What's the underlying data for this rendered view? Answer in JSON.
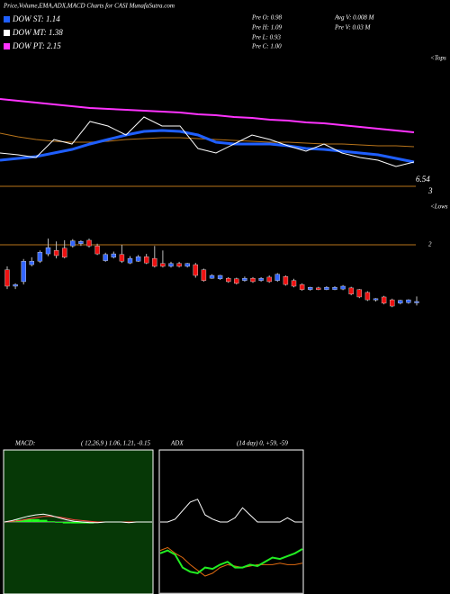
{
  "header": {
    "title": "Price,Volume,EMA,ADX,MACD Charts for CASI MunafaSutra.com",
    "legend": [
      {
        "label": "DOW ST: 1.14",
        "color": "#1f5fff"
      },
      {
        "label": "DOW MT: 1.38",
        "color": "#ffffff"
      },
      {
        "label": "DOW PT: 2.15",
        "color": "#ff33ff"
      }
    ],
    "stats": [
      "Pre  O: 0.98",
      "Pre  H: 1.09",
      "Pre  L: 0.93",
      "Pre  C: 1.00",
      "Avg V: 0.008 M",
      "Pre  V: 0.03 M"
    ]
  },
  "chart_data": [
    {
      "type": "line",
      "annotations": [
        "<Tops",
        "6.54",
        "3"
      ],
      "ylim": [
        0,
        155
      ],
      "series": [
        {
          "color": "#ff33ff",
          "width": 2,
          "values": [
            105,
            103,
            101,
            99,
            97,
            95,
            94,
            93,
            92,
            91,
            90,
            88,
            87,
            85,
            84,
            82,
            81,
            79,
            78,
            76,
            74,
            72,
            70,
            68
          ]
        },
        {
          "color": "#b8741a",
          "width": 1,
          "values": [
            67,
            63,
            60,
            58,
            57,
            57,
            58,
            60,
            61,
            62,
            62,
            61,
            60,
            59,
            58,
            57,
            57,
            56,
            55,
            55,
            54,
            53,
            53,
            52
          ]
        },
        {
          "color": "#1f5fff",
          "width": 3,
          "values": [
            37,
            39,
            41,
            45,
            49,
            55,
            60,
            65,
            69,
            70,
            69,
            65,
            57,
            55,
            55,
            55,
            53,
            50,
            49,
            47,
            45,
            43,
            39,
            35
          ]
        },
        {
          "color": "#ffffff",
          "width": 1,
          "values": [
            45,
            43,
            40,
            60,
            55,
            80,
            75,
            65,
            85,
            75,
            75,
            50,
            45,
            55,
            65,
            60,
            53,
            47,
            55,
            45,
            40,
            37,
            30,
            35
          ]
        }
      ]
    },
    {
      "type": "candlestick",
      "annotations": [
        "<Lows"
      ],
      "ylim": [
        0.5,
        2.5
      ],
      "yticks": [
        2
      ],
      "grid": true,
      "up_color": "#3366ff",
      "down_color": "#ee1111",
      "ohlc": [
        [
          1.56,
          1.62,
          1.22,
          1.27
        ],
        [
          1.27,
          1.32,
          1.22,
          1.3
        ],
        [
          1.35,
          1.75,
          1.3,
          1.71
        ],
        [
          1.65,
          1.78,
          1.62,
          1.71
        ],
        [
          1.71,
          1.9,
          1.68,
          1.87
        ],
        [
          1.84,
          2.11,
          1.8,
          1.95
        ],
        [
          1.9,
          2.06,
          1.76,
          1.81
        ],
        [
          1.94,
          2.08,
          1.76,
          1.78
        ],
        [
          1.98,
          2.1,
          1.95,
          2.07
        ],
        [
          2.02,
          2.08,
          1.98,
          2.06
        ],
        [
          2.08,
          2.11,
          1.95,
          1.98
        ],
        [
          1.98,
          2.02,
          1.82,
          1.84
        ],
        [
          1.72,
          1.86,
          1.7,
          1.83
        ],
        [
          1.78,
          1.88,
          1.76,
          1.84
        ],
        [
          1.83,
          2.0,
          1.68,
          1.71
        ],
        [
          1.68,
          1.8,
          1.66,
          1.76
        ],
        [
          1.71,
          1.82,
          1.7,
          1.79
        ],
        [
          1.79,
          1.84,
          1.66,
          1.68
        ],
        [
          1.76,
          1.98,
          1.6,
          1.62
        ],
        [
          1.67,
          1.9,
          1.6,
          1.62
        ],
        [
          1.62,
          1.7,
          1.6,
          1.67
        ],
        [
          1.67,
          1.7,
          1.6,
          1.62
        ],
        [
          1.62,
          1.68,
          1.6,
          1.67
        ],
        [
          1.65,
          1.68,
          1.42,
          1.46
        ],
        [
          1.56,
          1.58,
          1.35,
          1.37
        ],
        [
          1.41,
          1.48,
          1.4,
          1.46
        ],
        [
          1.4,
          1.47,
          1.38,
          1.46
        ],
        [
          1.41,
          1.43,
          1.33,
          1.35
        ],
        [
          1.4,
          1.42,
          1.3,
          1.32
        ],
        [
          1.37,
          1.44,
          1.35,
          1.41
        ],
        [
          1.41,
          1.43,
          1.33,
          1.35
        ],
        [
          1.37,
          1.43,
          1.35,
          1.41
        ],
        [
          1.43,
          1.46,
          1.33,
          1.35
        ],
        [
          1.37,
          1.5,
          1.35,
          1.48
        ],
        [
          1.44,
          1.46,
          1.28,
          1.3
        ],
        [
          1.37,
          1.4,
          1.25,
          1.27
        ],
        [
          1.3,
          1.32,
          1.19,
          1.21
        ],
        [
          1.21,
          1.26,
          1.19,
          1.25
        ],
        [
          1.24,
          1.26,
          1.2,
          1.21
        ],
        [
          1.21,
          1.27,
          1.2,
          1.25
        ],
        [
          1.21,
          1.27,
          1.2,
          1.25
        ],
        [
          1.22,
          1.29,
          1.2,
          1.27
        ],
        [
          1.24,
          1.26,
          1.11,
          1.13
        ],
        [
          1.21,
          1.22,
          1.06,
          1.08
        ],
        [
          1.16,
          1.18,
          1.01,
          1.03
        ],
        [
          1.03,
          1.06,
          1.0,
          1.05
        ],
        [
          1.08,
          1.1,
          0.95,
          0.97
        ],
        [
          1.03,
          1.05,
          0.9,
          0.92
        ],
        [
          0.97,
          1.03,
          0.95,
          1.02
        ],
        [
          0.98,
          1.04,
          0.96,
          1.03
        ],
        [
          0.98,
          1.09,
          0.93,
          1.0
        ]
      ]
    },
    {
      "type": "line",
      "title": "MACD:",
      "subtitle": "( 12,26,9 ) 1.06,  1.21, -0.15",
      "background": "#063806",
      "ylim": [
        -10,
        10
      ],
      "series": [
        {
          "kind": "bar",
          "color": "#22ff22",
          "values": [
            0,
            0.1,
            0.3,
            0.4,
            0.4,
            0.3,
            0.1,
            -0.1,
            -0.2,
            -0.2,
            -0.2,
            -0.2,
            -0.1,
            0,
            0,
            0,
            -0.1,
            0,
            0,
            0
          ]
        },
        {
          "color": "#ff4444",
          "width": 1,
          "values": [
            0,
            0.1,
            0.2,
            0.4,
            0.6,
            0.8,
            0.8,
            0.7,
            0.5,
            0.3,
            0.2,
            0.1,
            0,
            0,
            0,
            0,
            0,
            0,
            0,
            0
          ]
        },
        {
          "color": "#ffffff",
          "width": 1,
          "values": [
            0,
            0.2,
            0.5,
            0.8,
            1.0,
            1.1,
            0.9,
            0.6,
            0.3,
            0.1,
            0,
            -0.1,
            -0.1,
            0,
            0,
            0,
            -0.1,
            0,
            0,
            0
          ]
        }
      ]
    },
    {
      "type": "line",
      "title": "ADX",
      "subtitle": "(14  day) 0, +59, -59",
      "background": "#000000",
      "ylim": [
        0,
        100
      ],
      "series": [
        {
          "color": "#ffffff",
          "width": 1,
          "values": [
            50,
            50,
            52,
            58,
            64,
            66,
            55,
            52,
            50,
            50,
            53,
            60,
            55,
            50,
            50,
            50,
            50,
            53,
            50,
            50
          ]
        },
        {
          "color": "#e06a10",
          "width": 1,
          "values": [
            30,
            32,
            28,
            25,
            20,
            16,
            12,
            14,
            18,
            20,
            19,
            18,
            19,
            20,
            20,
            20,
            21,
            20,
            20,
            21
          ]
        },
        {
          "color": "#22ee22",
          "width": 2,
          "values": [
            28,
            30,
            27,
            18,
            15,
            14,
            18,
            17,
            20,
            22,
            18,
            18,
            20,
            19,
            22,
            25,
            24,
            26,
            28,
            31
          ]
        }
      ]
    }
  ]
}
